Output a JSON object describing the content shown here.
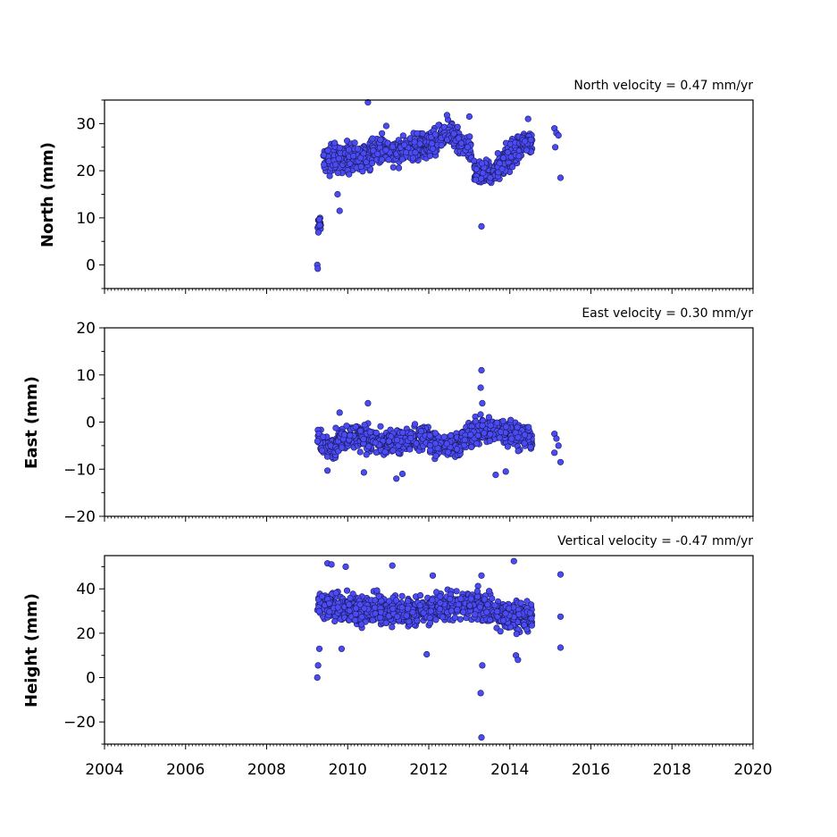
{
  "chart_data": [
    {
      "type": "scatter",
      "title": "North velocity = 0.47 mm/yr",
      "ylabel": "North (mm)",
      "xlim": [
        2004,
        2020
      ],
      "ylim": [
        -5,
        35
      ],
      "yticks": [
        0,
        10,
        20,
        30
      ],
      "color": "#4b4bf5",
      "segments": [
        {
          "x0": 2009.25,
          "x1": 2009.35,
          "y0": 8,
          "y1": 9.5,
          "spread": 1.8
        },
        {
          "x0": 2009.4,
          "x1": 2010.0,
          "y0": 22,
          "y1": 23,
          "spread": 2.8
        },
        {
          "x0": 2010.0,
          "x1": 2010.6,
          "y0": 22.5,
          "y1": 23.5,
          "spread": 2.8
        },
        {
          "x0": 2010.6,
          "x1": 2011.3,
          "y0": 24.5,
          "y1": 24,
          "spread": 2.6
        },
        {
          "x0": 2011.3,
          "x1": 2012.0,
          "y0": 24.5,
          "y1": 25.5,
          "spread": 2.6
        },
        {
          "x0": 2012.0,
          "x1": 2012.6,
          "y0": 25,
          "y1": 28.5,
          "spread": 2.5
        },
        {
          "x0": 2012.6,
          "x1": 2013.05,
          "y0": 27,
          "y1": 24.5,
          "spread": 2.5
        },
        {
          "x0": 2013.1,
          "x1": 2013.7,
          "y0": 19.5,
          "y1": 20,
          "spread": 2.0
        },
        {
          "x0": 2013.7,
          "x1": 2014.3,
          "y0": 21,
          "y1": 25.5,
          "spread": 2.8
        },
        {
          "x0": 2014.3,
          "x1": 2014.55,
          "y0": 26,
          "y1": 25.5,
          "spread": 2.5
        }
      ],
      "extra_points": [
        {
          "x": 2009.25,
          "y": 0
        },
        {
          "x": 2009.26,
          "y": -0.8
        },
        {
          "x": 2009.8,
          "y": 11.5
        },
        {
          "x": 2009.75,
          "y": 15
        },
        {
          "x": 2010.5,
          "y": 34.5
        },
        {
          "x": 2013.3,
          "y": 8.2
        },
        {
          "x": 2015.1,
          "y": 29
        },
        {
          "x": 2015.15,
          "y": 28
        },
        {
          "x": 2015.2,
          "y": 27.5
        },
        {
          "x": 2015.12,
          "y": 25
        },
        {
          "x": 2015.25,
          "y": 18.5
        },
        {
          "x": 2014.45,
          "y": 31
        },
        {
          "x": 2012.45,
          "y": 31.8
        },
        {
          "x": 2013.0,
          "y": 31.5
        },
        {
          "x": 2010.95,
          "y": 29.5
        }
      ]
    },
    {
      "type": "scatter",
      "title": "East velocity = 0.30 mm/yr",
      "ylabel": "East (mm)",
      "xlim": [
        2004,
        2020
      ],
      "ylim": [
        -20,
        20
      ],
      "yticks": [
        -20,
        -10,
        0,
        10,
        20
      ],
      "color": "#4b4bf5",
      "segments": [
        {
          "x0": 2009.25,
          "x1": 2009.7,
          "y0": -3.5,
          "y1": -6,
          "spread": 2.3
        },
        {
          "x0": 2009.7,
          "x1": 2010.3,
          "y0": -4,
          "y1": -2.5,
          "spread": 2.3
        },
        {
          "x0": 2010.3,
          "x1": 2011.0,
          "y0": -3.5,
          "y1": -4.5,
          "spread": 2.3
        },
        {
          "x0": 2011.0,
          "x1": 2012.0,
          "y0": -4,
          "y1": -3,
          "spread": 2.3
        },
        {
          "x0": 2012.0,
          "x1": 2012.8,
          "y0": -4.5,
          "y1": -5.5,
          "spread": 2.3
        },
        {
          "x0": 2012.8,
          "x1": 2013.5,
          "y0": -3.5,
          "y1": -1,
          "spread": 2.3
        },
        {
          "x0": 2013.5,
          "x1": 2014.55,
          "y0": -1.5,
          "y1": -3.5,
          "spread": 2.5
        }
      ],
      "extra_points": [
        {
          "x": 2013.3,
          "y": 11
        },
        {
          "x": 2013.28,
          "y": 7.3
        },
        {
          "x": 2013.32,
          "y": 4
        },
        {
          "x": 2010.5,
          "y": 4
        },
        {
          "x": 2011.2,
          "y": -12
        },
        {
          "x": 2011.35,
          "y": -11
        },
        {
          "x": 2013.65,
          "y": -11.2
        },
        {
          "x": 2013.9,
          "y": -10.5
        },
        {
          "x": 2010.4,
          "y": -10.7
        },
        {
          "x": 2009.5,
          "y": -10.3
        },
        {
          "x": 2015.1,
          "y": -2.5
        },
        {
          "x": 2015.15,
          "y": -3.5
        },
        {
          "x": 2015.2,
          "y": -5
        },
        {
          "x": 2015.1,
          "y": -6.5
        },
        {
          "x": 2015.25,
          "y": -8.5
        },
        {
          "x": 2009.8,
          "y": 2
        }
      ]
    },
    {
      "type": "scatter",
      "title": "Vertical velocity = -0.47 mm/yr",
      "ylabel": "Height (mm)",
      "xlim": [
        2004,
        2020
      ],
      "ylim": [
        -30,
        55
      ],
      "yticks": [
        -20,
        0,
        20,
        40
      ],
      "color": "#4b4bf5",
      "segments": [
        {
          "x0": 2009.25,
          "x1": 2010.0,
          "y0": 33,
          "y1": 32,
          "spread": 6
        },
        {
          "x0": 2010.0,
          "x1": 2011.0,
          "y0": 31,
          "y1": 30,
          "spread": 6
        },
        {
          "x0": 2011.0,
          "x1": 2012.0,
          "y0": 30,
          "y1": 30,
          "spread": 6
        },
        {
          "x0": 2012.0,
          "x1": 2013.0,
          "y0": 30,
          "y1": 34,
          "spread": 6
        },
        {
          "x0": 2013.0,
          "x1": 2013.6,
          "y0": 33,
          "y1": 30,
          "spread": 6
        },
        {
          "x0": 2013.6,
          "x1": 2014.55,
          "y0": 28,
          "y1": 28,
          "spread": 6
        }
      ],
      "extra_points": [
        {
          "x": 2009.25,
          "y": 0
        },
        {
          "x": 2009.27,
          "y": 5.5
        },
        {
          "x": 2009.3,
          "y": 13
        },
        {
          "x": 2009.5,
          "y": 51.5
        },
        {
          "x": 2009.6,
          "y": 51
        },
        {
          "x": 2009.95,
          "y": 50
        },
        {
          "x": 2011.1,
          "y": 50.5
        },
        {
          "x": 2013.3,
          "y": -27
        },
        {
          "x": 2013.28,
          "y": -7
        },
        {
          "x": 2013.32,
          "y": 5.5
        },
        {
          "x": 2013.3,
          "y": 46
        },
        {
          "x": 2014.1,
          "y": 52.5
        },
        {
          "x": 2014.15,
          "y": 10
        },
        {
          "x": 2014.2,
          "y": 8
        },
        {
          "x": 2011.95,
          "y": 10.5
        },
        {
          "x": 2015.25,
          "y": 46.5
        },
        {
          "x": 2015.25,
          "y": 27.5
        },
        {
          "x": 2015.25,
          "y": 13.5
        },
        {
          "x": 2009.85,
          "y": 13
        },
        {
          "x": 2012.1,
          "y": 46
        }
      ]
    }
  ],
  "x_ticks": [
    2004,
    2006,
    2008,
    2010,
    2012,
    2014,
    2016,
    2018,
    2020
  ]
}
